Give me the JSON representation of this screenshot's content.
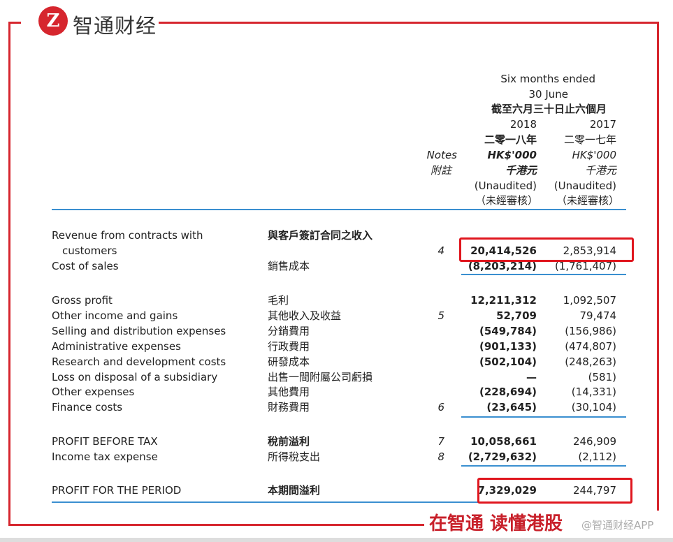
{
  "brand": {
    "logo_text": "智通财经",
    "slogan": "在智通 读懂港股",
    "watermark": "@智通财经APP",
    "accent": "#d6262e",
    "rule_color": "#3a8fd0"
  },
  "header": {
    "period_en1": "Six months ended",
    "period_en2": "30 June",
    "period_zh": "截至六月三十日止六個月",
    "notes_en": "Notes",
    "notes_zh": "附註",
    "cols": [
      {
        "year": "2018",
        "year_zh": "二零一八年",
        "unit": "HK$'000",
        "unit_zh": "千港元",
        "audit": "(Unaudited)",
        "audit_zh": "（未經審核）"
      },
      {
        "year": "2017",
        "year_zh": "二零一七年",
        "unit": "HK$'000",
        "unit_zh": "千港元",
        "audit": "(Unaudited)",
        "audit_zh": "（未經審核）"
      }
    ]
  },
  "rows": [
    {
      "en": "Revenue from contracts with",
      "en2": "customers",
      "zh": "與客戶簽訂合同之收入",
      "note": "4",
      "v2018": "20,414,526",
      "v2017": "2,853,914"
    },
    {
      "en": "Cost of sales",
      "zh": "銷售成本",
      "note": "",
      "v2018": "(8,203,214)",
      "v2017": "(1,761,407)"
    },
    {
      "en": "Gross profit",
      "zh": "毛利",
      "note": "",
      "v2018": "12,211,312",
      "v2017": "1,092,507"
    },
    {
      "en": "Other income and gains",
      "zh": "其他收入及收益",
      "note": "5",
      "v2018": "52,709",
      "v2017": "79,474"
    },
    {
      "en": "Selling and distribution expenses",
      "zh": "分銷費用",
      "note": "",
      "v2018": "(549,784)",
      "v2017": "(156,986)"
    },
    {
      "en": "Administrative expenses",
      "zh": "行政費用",
      "note": "",
      "v2018": "(901,133)",
      "v2017": "(474,807)"
    },
    {
      "en": "Research and development costs",
      "zh": "研發成本",
      "note": "",
      "v2018": "(502,104)",
      "v2017": "(248,263)"
    },
    {
      "en": "Loss on disposal of a subsidiary",
      "zh": "出售一間附屬公司虧損",
      "note": "",
      "v2018": "—",
      "v2017": "(581)"
    },
    {
      "en": "Other expenses",
      "zh": "其他費用",
      "note": "",
      "v2018": "(228,694)",
      "v2017": "(14,331)"
    },
    {
      "en": "Finance costs",
      "zh": "財務費用",
      "note": "6",
      "v2018": "(23,645)",
      "v2017": "(30,104)"
    },
    {
      "en": "PROFIT BEFORE TAX",
      "zh": "稅前溢利",
      "note": "7",
      "v2018": "10,058,661",
      "v2017": "246,909"
    },
    {
      "en": "Income tax expense",
      "zh": "所得稅支出",
      "note": "8",
      "v2018": "(2,729,632)",
      "v2017": "(2,112)"
    },
    {
      "en": "PROFIT FOR THE PERIOD",
      "zh": "本期間溢利",
      "note": "",
      "v2018": "7,329,029",
      "v2017": "244,797"
    }
  ]
}
